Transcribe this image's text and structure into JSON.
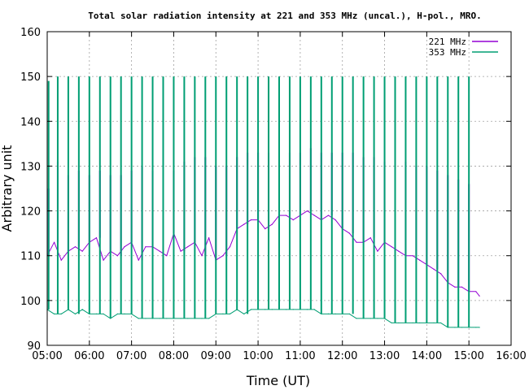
{
  "chart_data": {
    "type": "line",
    "title": "Total solar radiation intensity at 221 and 353 MHz (uncal.), H-pol., MRO.",
    "xlabel": "Time (UT)",
    "ylabel": "Arbitrary unit",
    "xlim": [
      "05:00",
      "16:00"
    ],
    "ylim": [
      90,
      160
    ],
    "xticks": [
      "05:00",
      "06:00",
      "07:00",
      "08:00",
      "09:00",
      "10:00",
      "11:00",
      "12:00",
      "13:00",
      "14:00",
      "15:00",
      "16:00"
    ],
    "yticks": [
      90,
      100,
      110,
      120,
      130,
      140,
      150,
      160
    ],
    "grid": true,
    "legend_position": "top-right",
    "colors": {
      "221 MHz": "#9400d3",
      "353 MHz": "#009e73"
    },
    "series": [
      {
        "name": "221 MHz",
        "x": [
          "05:00",
          "05:10",
          "05:20",
          "05:30",
          "05:40",
          "05:50",
          "06:00",
          "06:10",
          "06:20",
          "06:30",
          "06:40",
          "06:50",
          "07:00",
          "07:10",
          "07:20",
          "07:30",
          "07:40",
          "07:50",
          "08:00",
          "08:10",
          "08:20",
          "08:30",
          "08:40",
          "08:50",
          "09:00",
          "09:10",
          "09:20",
          "09:30",
          "09:40",
          "09:50",
          "10:00",
          "10:10",
          "10:20",
          "10:30",
          "10:40",
          "10:50",
          "11:00",
          "11:10",
          "11:20",
          "11:30",
          "11:40",
          "11:50",
          "12:00",
          "12:10",
          "12:20",
          "12:30",
          "12:40",
          "12:50",
          "13:00",
          "13:10",
          "13:20",
          "13:30",
          "13:40",
          "13:50",
          "14:00",
          "14:10",
          "14:20",
          "14:30",
          "14:40",
          "14:50",
          "15:00",
          "15:10",
          "15:15"
        ],
        "values": [
          110,
          113,
          109,
          111,
          112,
          111,
          113,
          114,
          109,
          111,
          110,
          112,
          113,
          109,
          112,
          112,
          111,
          110,
          115,
          111,
          112,
          113,
          110,
          114,
          109,
          110,
          112,
          116,
          117,
          118,
          118,
          116,
          117,
          119,
          119,
          118,
          119,
          120,
          119,
          118,
          119,
          118,
          116,
          115,
          113,
          113,
          114,
          111,
          113,
          112,
          111,
          110,
          110,
          109,
          108,
          107,
          106,
          104,
          103,
          103,
          102,
          102,
          101
        ],
        "spikes": [
          {
            "t": "05:02",
            "peak": 125
          },
          {
            "t": "05:15",
            "peak": 131
          },
          {
            "t": "05:30",
            "peak": 128
          },
          {
            "t": "05:45",
            "peak": 129
          },
          {
            "t": "06:00",
            "peak": 128
          },
          {
            "t": "06:15",
            "peak": 129
          },
          {
            "t": "06:30",
            "peak": 128
          },
          {
            "t": "06:45",
            "peak": 128
          },
          {
            "t": "07:00",
            "peak": 129
          },
          {
            "t": "07:15",
            "peak": 130
          },
          {
            "t": "07:30",
            "peak": 129
          },
          {
            "t": "07:45",
            "peak": 128
          },
          {
            "t": "08:00",
            "peak": 129
          },
          {
            "t": "08:15",
            "peak": 131
          },
          {
            "t": "08:30",
            "peak": 132
          },
          {
            "t": "08:45",
            "peak": 132
          },
          {
            "t": "09:00",
            "peak": 130
          },
          {
            "t": "09:15",
            "peak": 130
          },
          {
            "t": "09:30",
            "peak": 132
          },
          {
            "t": "09:45",
            "peak": 133
          },
          {
            "t": "10:00",
            "peak": 133
          },
          {
            "t": "10:15",
            "peak": 133
          },
          {
            "t": "10:30",
            "peak": 134
          },
          {
            "t": "10:45",
            "peak": 133
          },
          {
            "t": "11:00",
            "peak": 133
          },
          {
            "t": "11:15",
            "peak": 134
          },
          {
            "t": "11:30",
            "peak": 133
          },
          {
            "t": "11:45",
            "peak": 133
          },
          {
            "t": "12:00",
            "peak": 133
          },
          {
            "t": "12:15",
            "peak": 133
          },
          {
            "t": "12:30",
            "peak": 132
          },
          {
            "t": "12:45",
            "peak": 132
          },
          {
            "t": "13:00",
            "peak": 131
          },
          {
            "t": "13:15",
            "peak": 131
          },
          {
            "t": "13:30",
            "peak": 131
          },
          {
            "t": "13:45",
            "peak": 130
          },
          {
            "t": "14:00",
            "peak": 130
          },
          {
            "t": "14:15",
            "peak": 129
          },
          {
            "t": "14:30",
            "peak": 128
          },
          {
            "t": "14:45",
            "peak": 127
          },
          {
            "t": "15:00",
            "peak": 126
          }
        ]
      },
      {
        "name": "353 MHz",
        "x": [
          "05:00",
          "05:10",
          "05:20",
          "05:30",
          "05:40",
          "05:50",
          "06:00",
          "06:10",
          "06:20",
          "06:30",
          "06:40",
          "06:50",
          "07:00",
          "07:10",
          "07:20",
          "07:30",
          "07:40",
          "07:50",
          "08:00",
          "08:10",
          "08:20",
          "08:30",
          "08:40",
          "08:50",
          "09:00",
          "09:10",
          "09:20",
          "09:30",
          "09:40",
          "09:50",
          "10:00",
          "10:10",
          "10:20",
          "10:30",
          "10:40",
          "10:50",
          "11:00",
          "11:10",
          "11:20",
          "11:30",
          "11:40",
          "11:50",
          "12:00",
          "12:10",
          "12:20",
          "12:30",
          "12:40",
          "12:50",
          "13:00",
          "13:10",
          "13:20",
          "13:30",
          "13:40",
          "13:50",
          "14:00",
          "14:10",
          "14:20",
          "14:30",
          "14:40",
          "14:50",
          "15:00",
          "15:10",
          "15:15"
        ],
        "values": [
          98,
          97,
          97,
          98,
          97,
          98,
          97,
          97,
          97,
          96,
          97,
          97,
          97,
          96,
          96,
          96,
          96,
          96,
          96,
          96,
          96,
          96,
          96,
          96,
          97,
          97,
          97,
          98,
          97,
          98,
          98,
          98,
          98,
          98,
          98,
          98,
          98,
          98,
          98,
          97,
          97,
          97,
          97,
          97,
          96,
          96,
          96,
          96,
          96,
          95,
          95,
          95,
          95,
          95,
          95,
          95,
          95,
          94,
          94,
          94,
          94,
          94,
          94
        ],
        "spikes": [
          {
            "t": "05:02",
            "peak": 149
          },
          {
            "t": "05:15",
            "peak": 150
          },
          {
            "t": "05:30",
            "peak": 150
          },
          {
            "t": "05:45",
            "peak": 150
          },
          {
            "t": "06:00",
            "peak": 150
          },
          {
            "t": "06:15",
            "peak": 150
          },
          {
            "t": "06:30",
            "peak": 150
          },
          {
            "t": "06:45",
            "peak": 150
          },
          {
            "t": "07:00",
            "peak": 150
          },
          {
            "t": "07:15",
            "peak": 150
          },
          {
            "t": "07:30",
            "peak": 150
          },
          {
            "t": "07:45",
            "peak": 150
          },
          {
            "t": "08:00",
            "peak": 150
          },
          {
            "t": "08:15",
            "peak": 150
          },
          {
            "t": "08:30",
            "peak": 150
          },
          {
            "t": "08:45",
            "peak": 150
          },
          {
            "t": "09:00",
            "peak": 150
          },
          {
            "t": "09:15",
            "peak": 150
          },
          {
            "t": "09:30",
            "peak": 150
          },
          {
            "t": "09:45",
            "peak": 150
          },
          {
            "t": "10:00",
            "peak": 150
          },
          {
            "t": "10:15",
            "peak": 150
          },
          {
            "t": "10:30",
            "peak": 150
          },
          {
            "t": "10:45",
            "peak": 150
          },
          {
            "t": "11:00",
            "peak": 150
          },
          {
            "t": "11:15",
            "peak": 150
          },
          {
            "t": "11:30",
            "peak": 150
          },
          {
            "t": "11:45",
            "peak": 150
          },
          {
            "t": "12:00",
            "peak": 150
          },
          {
            "t": "12:15",
            "peak": 150
          },
          {
            "t": "12:30",
            "peak": 150
          },
          {
            "t": "12:45",
            "peak": 150
          },
          {
            "t": "13:00",
            "peak": 150
          },
          {
            "t": "13:15",
            "peak": 150
          },
          {
            "t": "13:30",
            "peak": 150
          },
          {
            "t": "13:45",
            "peak": 150
          },
          {
            "t": "14:00",
            "peak": 150
          },
          {
            "t": "14:15",
            "peak": 150
          },
          {
            "t": "14:30",
            "peak": 150
          },
          {
            "t": "14:45",
            "peak": 150
          },
          {
            "t": "15:00",
            "peak": 150
          }
        ]
      }
    ]
  }
}
